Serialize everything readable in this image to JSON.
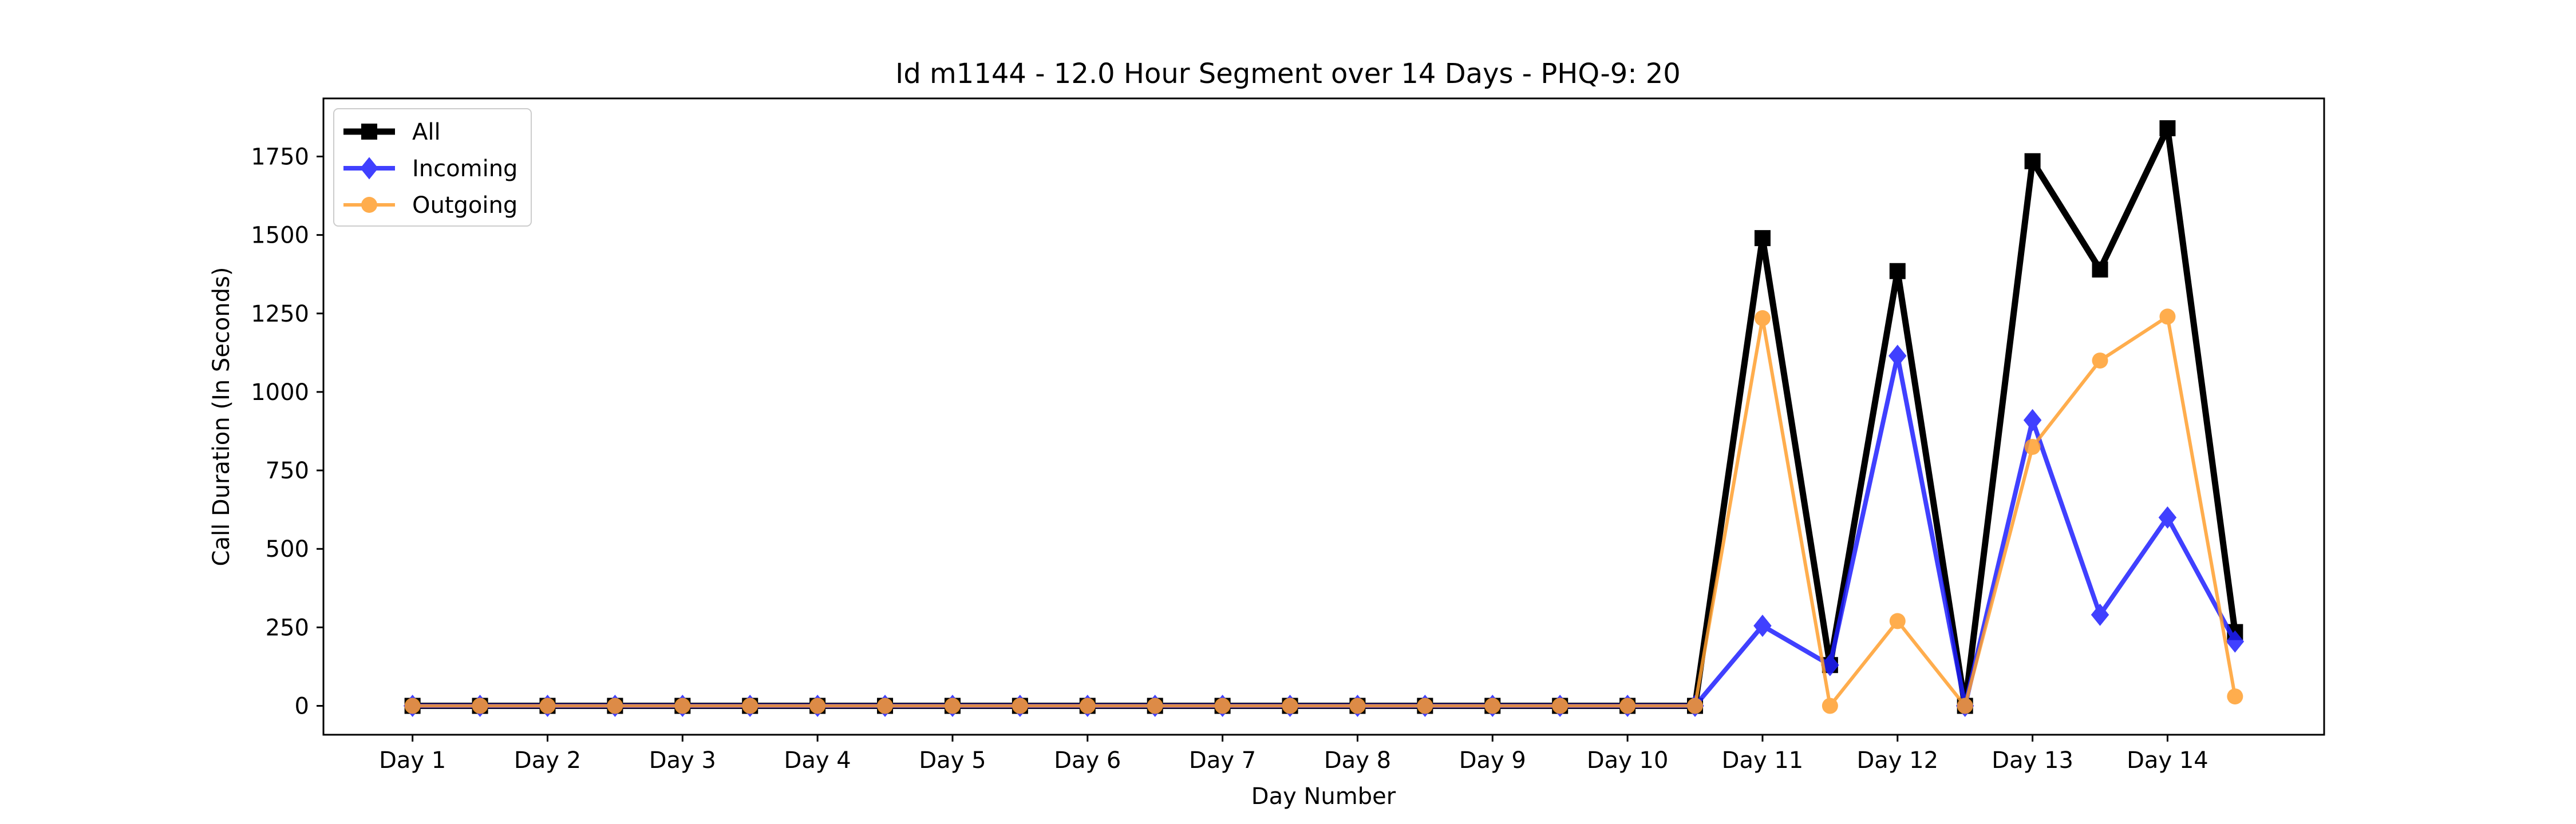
{
  "chart_data": {
    "type": "line",
    "title": "Id m1144 - 12.0 Hour Segment over 14 Days - PHQ-9: 20",
    "xlabel": "Day Number",
    "ylabel": "Call Duration (In Seconds)",
    "x": [
      1,
      1.5,
      2,
      2.5,
      3,
      3.5,
      4,
      4.5,
      5,
      5.5,
      6,
      6.5,
      7,
      7.5,
      8,
      8.5,
      9,
      9.5,
      10,
      10.5,
      11,
      11.5,
      12,
      12.5,
      13,
      13.5,
      14,
      14.5
    ],
    "xticks": [
      {
        "value": 1,
        "label": "Day 1"
      },
      {
        "value": 2,
        "label": "Day 2"
      },
      {
        "value": 3,
        "label": "Day 3"
      },
      {
        "value": 4,
        "label": "Day 4"
      },
      {
        "value": 5,
        "label": "Day 5"
      },
      {
        "value": 6,
        "label": "Day 6"
      },
      {
        "value": 7,
        "label": "Day 7"
      },
      {
        "value": 8,
        "label": "Day 8"
      },
      {
        "value": 9,
        "label": "Day 9"
      },
      {
        "value": 10,
        "label": "Day 10"
      },
      {
        "value": 11,
        "label": "Day 11"
      },
      {
        "value": 12,
        "label": "Day 12"
      },
      {
        "value": 13,
        "label": "Day 13"
      },
      {
        "value": 14,
        "label": "Day 14"
      }
    ],
    "yticks": [
      0,
      250,
      500,
      750,
      1000,
      1250,
      1500,
      1750
    ],
    "xlim": [
      0.34,
      15.16
    ],
    "ylim": [
      -92,
      1935
    ],
    "grid": false,
    "legend_position": "top-left",
    "series": [
      {
        "name": "All",
        "color": "#000000",
        "marker": "square",
        "values": [
          0,
          0,
          0,
          0,
          0,
          0,
          0,
          0,
          0,
          0,
          0,
          0,
          0,
          0,
          0,
          0,
          0,
          0,
          0,
          0,
          1490,
          130,
          1385,
          0,
          1735,
          1390,
          1840,
          235
        ]
      },
      {
        "name": "Incoming",
        "color": "#1f1fff",
        "marker": "diamond",
        "values": [
          0,
          0,
          0,
          0,
          0,
          0,
          0,
          0,
          0,
          0,
          0,
          0,
          0,
          0,
          0,
          0,
          0,
          0,
          0,
          0,
          255,
          130,
          1115,
          0,
          910,
          290,
          600,
          205
        ]
      },
      {
        "name": "Outgoing",
        "color": "#ff9f2e",
        "marker": "circle",
        "values": [
          0,
          0,
          0,
          0,
          0,
          0,
          0,
          0,
          0,
          0,
          0,
          0,
          0,
          0,
          0,
          0,
          0,
          0,
          0,
          0,
          1235,
          0,
          270,
          0,
          825,
          1100,
          1240,
          30
        ]
      }
    ]
  }
}
